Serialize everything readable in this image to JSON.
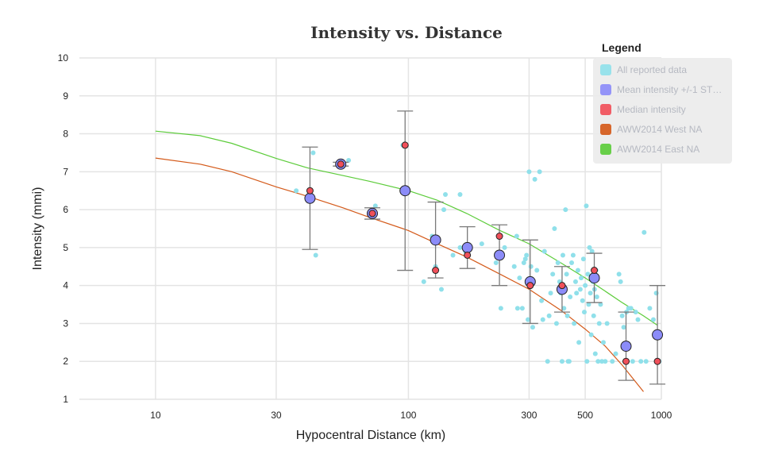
{
  "chart_data": {
    "type": "scatter",
    "title": "Intensity vs. Distance",
    "xlabel": "Hypocentral Distance (km)",
    "ylabel": "Intensity (mmi)",
    "xscale": "log",
    "xlim": [
      5,
      1000
    ],
    "ylim": [
      1,
      10
    ],
    "xticks": [
      10,
      30,
      100,
      300,
      500,
      1000
    ],
    "xtick_labels": [
      "10",
      "30",
      "100",
      "300",
      "500",
      "1000"
    ],
    "yticks": [
      1,
      2,
      3,
      4,
      5,
      6,
      7,
      8,
      9,
      10
    ],
    "ytick_labels": [
      "1",
      "2",
      "3",
      "4",
      "5",
      "6",
      "7",
      "8",
      "9",
      "10"
    ],
    "grid": true,
    "legend": {
      "title": "Legend",
      "placement": "top-right",
      "items": [
        {
          "label": "All reported data",
          "color": "#90e0ea"
        },
        {
          "label": "Mean intensity +/-1 ST…",
          "color": "#8c8cf8"
        },
        {
          "label": "Median intensity",
          "color": "#f0505a"
        },
        {
          "label": "AWW2014 West NA",
          "color": "#d45a1a"
        },
        {
          "label": "AWW2014 East NA",
          "color": "#5ccc3a"
        }
      ]
    },
    "series": [
      {
        "name": "All reported data",
        "type": "scatter",
        "color": "#90e0ea",
        "points": [
          [
            36,
            6.5
          ],
          [
            42,
            7.5
          ],
          [
            43,
            4.8
          ],
          [
            58,
            7.3
          ],
          [
            55,
            7.2
          ],
          [
            74,
            6.1
          ],
          [
            71,
            5.9
          ],
          [
            95,
            7.7
          ],
          [
            115,
            4.1
          ],
          [
            124,
            5.3
          ],
          [
            128,
            4.5
          ],
          [
            135,
            3.9
          ],
          [
            138,
            6.0
          ],
          [
            140,
            6.4
          ],
          [
            150,
            4.8
          ],
          [
            160,
            6.4
          ],
          [
            160,
            5.0
          ],
          [
            168,
            4.9
          ],
          [
            175,
            5.0
          ],
          [
            195,
            5.1
          ],
          [
            222,
            4.6
          ],
          [
            232,
            3.4
          ],
          [
            240,
            5.0
          ],
          [
            262,
            4.5
          ],
          [
            268,
            5.3
          ],
          [
            270,
            3.4
          ],
          [
            275,
            4.2
          ],
          [
            282,
            3.4
          ],
          [
            286,
            4.6
          ],
          [
            290,
            4.7
          ],
          [
            293,
            4.8
          ],
          [
            297,
            3.1
          ],
          [
            300,
            7.0
          ],
          [
            305,
            4.5
          ],
          [
            310,
            2.9
          ],
          [
            316,
            6.8
          ],
          [
            322,
            4.4
          ],
          [
            330,
            7.0
          ],
          [
            336,
            3.6
          ],
          [
            340,
            3.1
          ],
          [
            345,
            4.9
          ],
          [
            355,
            2.0
          ],
          [
            360,
            3.2
          ],
          [
            365,
            3.8
          ],
          [
            372,
            4.3
          ],
          [
            378,
            5.5
          ],
          [
            385,
            3.0
          ],
          [
            390,
            4.6
          ],
          [
            396,
            4.1
          ],
          [
            400,
            3.8
          ],
          [
            405,
            2.0
          ],
          [
            408,
            4.8
          ],
          [
            412,
            3.4
          ],
          [
            418,
            6.0
          ],
          [
            422,
            4.3
          ],
          [
            425,
            3.2
          ],
          [
            428,
            2.0
          ],
          [
            432,
            2.0
          ],
          [
            436,
            3.7
          ],
          [
            442,
            4.6
          ],
          [
            448,
            4.8
          ],
          [
            452,
            3.0
          ],
          [
            458,
            4.1
          ],
          [
            462,
            3.8
          ],
          [
            468,
            4.4
          ],
          [
            472,
            2.5
          ],
          [
            478,
            3.9
          ],
          [
            482,
            4.2
          ],
          [
            488,
            3.6
          ],
          [
            492,
            4.7
          ],
          [
            496,
            3.3
          ],
          [
            500,
            4.0
          ],
          [
            505,
            6.1
          ],
          [
            508,
            2.0
          ],
          [
            512,
            4.3
          ],
          [
            516,
            3.5
          ],
          [
            520,
            5.0
          ],
          [
            524,
            3.8
          ],
          [
            528,
            2.7
          ],
          [
            532,
            4.9
          ],
          [
            536,
            4.1
          ],
          [
            540,
            3.2
          ],
          [
            544,
            3.9
          ],
          [
            548,
            2.2
          ],
          [
            552,
            4.4
          ],
          [
            556,
            3.7
          ],
          [
            562,
            2.0
          ],
          [
            568,
            3.0
          ],
          [
            575,
            3.5
          ],
          [
            582,
            2.0
          ],
          [
            590,
            2.5
          ],
          [
            600,
            2.0
          ],
          [
            610,
            3.0
          ],
          [
            640,
            2.0
          ],
          [
            660,
            2.2
          ],
          [
            680,
            4.3
          ],
          [
            690,
            4.1
          ],
          [
            700,
            3.2
          ],
          [
            710,
            2.9
          ],
          [
            718,
            2.0
          ],
          [
            728,
            3.3
          ],
          [
            742,
            3.4
          ],
          [
            758,
            3.4
          ],
          [
            770,
            2.0
          ],
          [
            792,
            3.3
          ],
          [
            808,
            3.1
          ],
          [
            830,
            2.0
          ],
          [
            855,
            5.4
          ],
          [
            870,
            2.0
          ],
          [
            900,
            3.4
          ],
          [
            930,
            3.1
          ],
          [
            955,
            3.8
          ],
          [
            980,
            2.0
          ]
        ]
      },
      {
        "name": "Mean intensity +/-1 STD",
        "type": "errorbar",
        "color": "#8c8cf8",
        "points": [
          {
            "x": 40.8,
            "y": 6.3,
            "low": 4.95,
            "high": 7.65
          },
          {
            "x": 54,
            "y": 7.2,
            "low": 7.15,
            "high": 7.25
          },
          {
            "x": 72,
            "y": 5.9,
            "low": 5.75,
            "high": 6.05
          },
          {
            "x": 97,
            "y": 6.5,
            "low": 4.4,
            "high": 8.6
          },
          {
            "x": 128,
            "y": 5.2,
            "low": 4.2,
            "high": 6.2
          },
          {
            "x": 171,
            "y": 5.0,
            "low": 4.45,
            "high": 5.55
          },
          {
            "x": 229,
            "y": 4.8,
            "low": 4.0,
            "high": 5.6
          },
          {
            "x": 303,
            "y": 4.1,
            "low": 3.0,
            "high": 5.2
          },
          {
            "x": 405,
            "y": 3.9,
            "low": 3.3,
            "high": 4.5
          },
          {
            "x": 543,
            "y": 4.2,
            "low": 3.55,
            "high": 4.85
          },
          {
            "x": 725,
            "y": 2.4,
            "low": 1.5,
            "high": 3.3
          },
          {
            "x": 965,
            "y": 2.7,
            "low": 1.4,
            "high": 4.0
          }
        ]
      },
      {
        "name": "Median intensity",
        "type": "scatter",
        "color": "#f0505a",
        "points": [
          [
            40.8,
            6.5
          ],
          [
            54,
            7.2
          ],
          [
            72,
            5.9
          ],
          [
            97,
            7.7
          ],
          [
            128,
            4.4
          ],
          [
            171,
            4.8
          ],
          [
            229,
            5.3
          ],
          [
            303,
            4.0
          ],
          [
            405,
            4.0
          ],
          [
            543,
            4.4
          ],
          [
            725,
            2.0
          ],
          [
            965,
            2.0
          ]
        ]
      },
      {
        "name": "AWW2014 West NA",
        "type": "line",
        "color": "#d45a1a",
        "points": [
          [
            10,
            7.36
          ],
          [
            15,
            7.2
          ],
          [
            20,
            7.0
          ],
          [
            30,
            6.6
          ],
          [
            40,
            6.35
          ],
          [
            55,
            6.05
          ],
          [
            70,
            5.8
          ],
          [
            100,
            5.45
          ],
          [
            130,
            5.1
          ],
          [
            170,
            4.75
          ],
          [
            230,
            4.3
          ],
          [
            300,
            3.9
          ],
          [
            400,
            3.35
          ],
          [
            500,
            2.85
          ],
          [
            600,
            2.4
          ],
          [
            700,
            1.9
          ],
          [
            850,
            1.2
          ]
        ]
      },
      {
        "name": "AWW2014 East NA",
        "type": "line",
        "color": "#5ccc3a",
        "points": [
          [
            10,
            8.07
          ],
          [
            15,
            7.95
          ],
          [
            20,
            7.75
          ],
          [
            30,
            7.35
          ],
          [
            40,
            7.1
          ],
          [
            55,
            6.9
          ],
          [
            70,
            6.75
          ],
          [
            100,
            6.5
          ],
          [
            130,
            6.25
          ],
          [
            170,
            5.9
          ],
          [
            230,
            5.45
          ],
          [
            300,
            5.1
          ],
          [
            400,
            4.6
          ],
          [
            500,
            4.2
          ],
          [
            600,
            3.85
          ],
          [
            700,
            3.55
          ],
          [
            850,
            3.2
          ],
          [
            965,
            2.95
          ]
        ]
      }
    ]
  }
}
